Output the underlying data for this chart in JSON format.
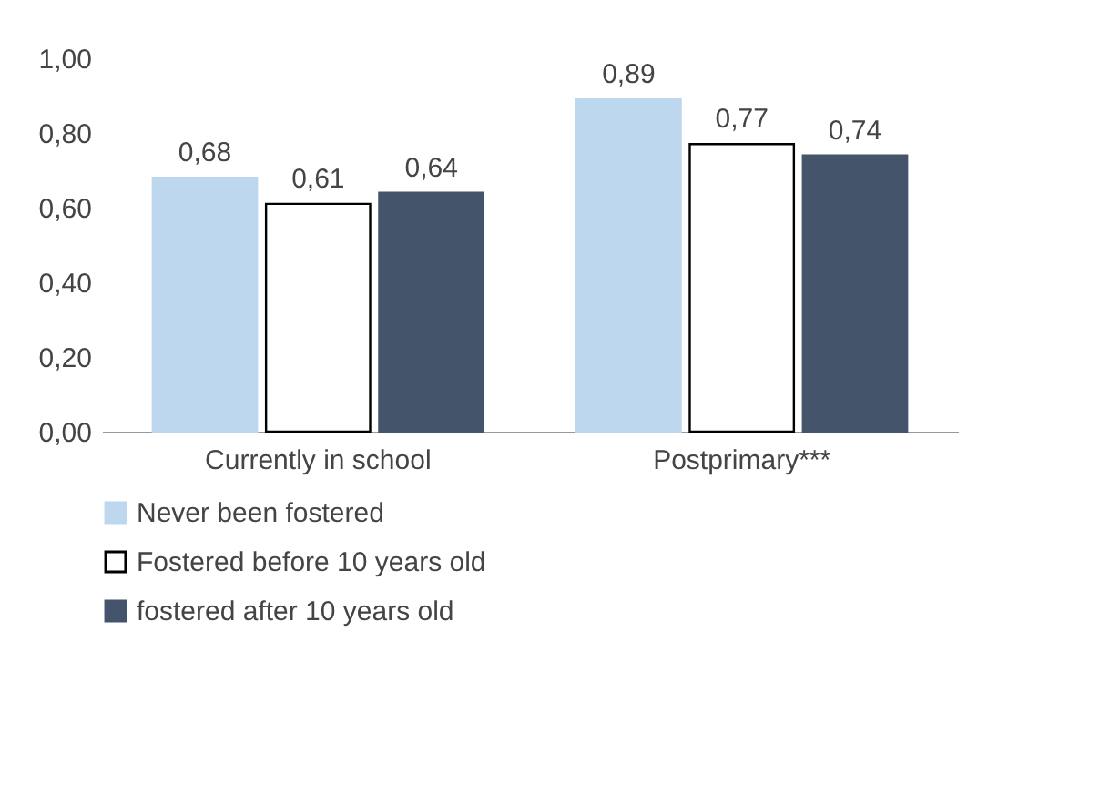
{
  "chart_data": {
    "type": "bar",
    "categories": [
      "Currently in school",
      "Postprimary***"
    ],
    "series": [
      {
        "name": "Never been fostered",
        "color": "#bdd7ee",
        "values": [
          0.68,
          0.89
        ],
        "value_labels": [
          "0,68",
          "0,89"
        ]
      },
      {
        "name": "Fostered before 10 years old",
        "color": "#ffffff",
        "values": [
          0.61,
          0.77
        ],
        "value_labels": [
          "0,61",
          "0,77"
        ]
      },
      {
        "name": "fostered after 10 years old",
        "color": "#44546a",
        "values": [
          0.64,
          0.74
        ],
        "value_labels": [
          "0,64",
          "0,74"
        ]
      }
    ],
    "ylim": [
      0,
      1
    ],
    "yticks": [
      {
        "value": 0,
        "label": "0,00"
      },
      {
        "value": 0.2,
        "label": "0,20"
      },
      {
        "value": 0.4,
        "label": "0,40"
      },
      {
        "value": 0.6,
        "label": "0,60"
      },
      {
        "value": 0.8,
        "label": "0,80"
      },
      {
        "value": 1,
        "label": "1,00"
      }
    ],
    "grid": false,
    "legend": "bottom"
  }
}
